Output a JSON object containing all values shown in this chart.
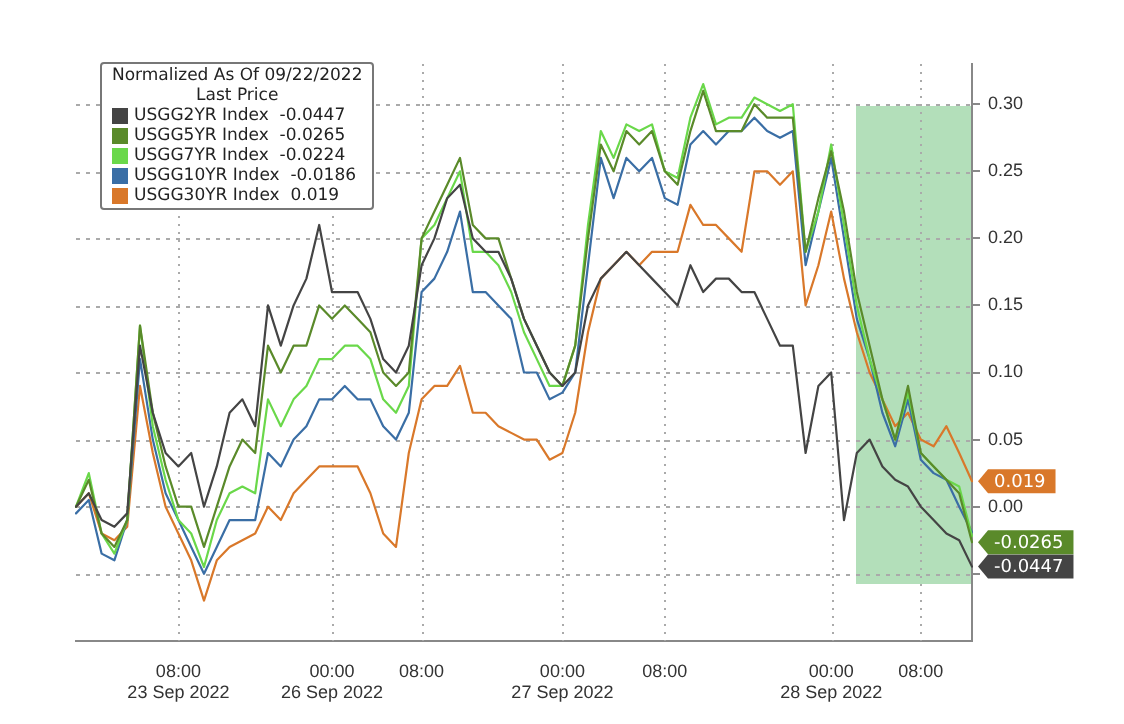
{
  "chart_data": {
    "type": "line",
    "legend_title": "Normalized As Of 09/22/2022\nLast Price",
    "legend": "top left",
    "grid": true,
    "marker": "none",
    "categories": [
      null,
      null,
      null,
      null,
      null,
      null,
      null,
      null,
      "08:00\n23 Sep 2022",
      null,
      null,
      null,
      null,
      null,
      null,
      null,
      null,
      null,
      null,
      null,
      "00:00\n26 Sep 2022",
      null,
      null,
      null,
      null,
      null,
      null,
      "08:00",
      null,
      null,
      null,
      null,
      null,
      null,
      null,
      null,
      null,
      null,
      "00:00\n27 Sep 2022",
      null,
      null,
      null,
      null,
      null,
      null,
      null,
      "08:00",
      null,
      null,
      null,
      null,
      null,
      null,
      null,
      null,
      null,
      null,
      null,
      null,
      "00:00\n28 Sep 2022",
      null,
      null,
      null,
      null,
      null,
      null,
      "08:00",
      null,
      null,
      null,
      null
    ],
    "ylim": [
      -0.1,
      0.33
    ],
    "yticks": [
      {
        "value": 0.3,
        "label": "0.30"
      },
      {
        "value": 0.25,
        "label": "0.25"
      },
      {
        "value": 0.2,
        "label": "0.20"
      },
      {
        "value": 0.15,
        "label": "0.15"
      },
      {
        "value": 0.1,
        "label": "0.10"
      },
      {
        "value": 0.05,
        "label": "0.05"
      },
      {
        "value": 0,
        "label": "0.00"
      },
      {
        "value": -0.05,
        "label": null
      }
    ],
    "series": [
      {
        "name": "USGG2YR Index  -0.0447",
        "color": "#444444",
        "values": [
          0.0,
          0.01,
          -0.01,
          -0.015,
          -0.005,
          0.12,
          0.07,
          0.04,
          0.03,
          0.04,
          0.0,
          0.03,
          0.07,
          0.08,
          0.06,
          0.15,
          0.12,
          0.15,
          0.17,
          0.21,
          0.16,
          0.16,
          0.16,
          0.14,
          0.11,
          0.1,
          0.12,
          0.18,
          0.2,
          0.23,
          0.24,
          0.2,
          0.19,
          0.19,
          0.17,
          0.14,
          0.12,
          0.1,
          0.09,
          0.1,
          0.15,
          0.17,
          0.18,
          0.19,
          0.18,
          0.17,
          0.16,
          0.15,
          0.18,
          0.16,
          0.17,
          0.17,
          0.16,
          0.16,
          0.14,
          0.12,
          0.12,
          0.04,
          0.09,
          0.1,
          -0.01,
          0.04,
          0.05,
          0.03,
          0.02,
          0.015,
          0.0,
          -0.01,
          -0.02,
          -0.025,
          -0.0447
        ],
        "value_labels": [
          null,
          null,
          null,
          null,
          null,
          null,
          null,
          null,
          null,
          null,
          null,
          null,
          null,
          null,
          null,
          null,
          null,
          null,
          null,
          null,
          null,
          null,
          null,
          null,
          null,
          null,
          null,
          null,
          null,
          null,
          null,
          null,
          null,
          null,
          null,
          null,
          null,
          null,
          null,
          null,
          null,
          null,
          null,
          null,
          null,
          null,
          null,
          null,
          null,
          null,
          null,
          null,
          null,
          null,
          null,
          null,
          null,
          null,
          null,
          null,
          null,
          null,
          null,
          null,
          null,
          null,
          null,
          null,
          null,
          null,
          "-0.0447"
        ]
      },
      {
        "name": "USGG5YR Index  -0.0265",
        "color": "#5a8a2a",
        "values": [
          0.0,
          0.02,
          -0.02,
          -0.03,
          -0.01,
          0.135,
          0.07,
          0.03,
          0.0,
          0.0,
          -0.03,
          0.0,
          0.03,
          0.05,
          0.04,
          0.12,
          0.1,
          0.12,
          0.12,
          0.15,
          0.14,
          0.15,
          0.14,
          0.13,
          0.1,
          0.09,
          0.1,
          0.2,
          0.22,
          0.24,
          0.26,
          0.21,
          0.2,
          0.2,
          0.17,
          0.14,
          0.12,
          0.1,
          0.09,
          0.12,
          0.2,
          0.27,
          0.25,
          0.28,
          0.27,
          0.28,
          0.25,
          0.24,
          0.28,
          0.31,
          0.28,
          0.28,
          0.28,
          0.3,
          0.29,
          0.29,
          0.29,
          0.19,
          0.23,
          0.265,
          0.22,
          0.16,
          0.12,
          0.08,
          0.05,
          0.09,
          0.04,
          0.03,
          0.02,
          0.01,
          -0.0265
        ],
        "value_labels": [
          null,
          null,
          null,
          null,
          null,
          null,
          null,
          null,
          null,
          null,
          null,
          null,
          null,
          null,
          null,
          null,
          null,
          null,
          null,
          null,
          null,
          null,
          null,
          null,
          null,
          null,
          null,
          null,
          null,
          null,
          null,
          null,
          null,
          null,
          null,
          null,
          null,
          null,
          null,
          null,
          null,
          null,
          null,
          null,
          null,
          null,
          null,
          null,
          null,
          null,
          null,
          null,
          null,
          null,
          null,
          null,
          null,
          null,
          null,
          null,
          null,
          null,
          null,
          null,
          null,
          null,
          null,
          null,
          null,
          null,
          "-0.0265"
        ]
      },
      {
        "name": "USGG7YR Index  -0.0224",
        "color": "#6ad84a",
        "values": [
          0.0,
          0.025,
          -0.02,
          -0.035,
          -0.01,
          0.135,
          0.06,
          0.02,
          -0.01,
          -0.02,
          -0.045,
          -0.01,
          0.01,
          0.015,
          0.01,
          0.08,
          0.06,
          0.08,
          0.09,
          0.11,
          0.11,
          0.12,
          0.12,
          0.11,
          0.08,
          0.07,
          0.09,
          0.2,
          0.21,
          0.23,
          0.25,
          0.19,
          0.19,
          0.18,
          0.16,
          0.13,
          0.11,
          0.09,
          0.09,
          0.12,
          0.21,
          0.28,
          0.26,
          0.285,
          0.28,
          0.285,
          0.25,
          0.245,
          0.29,
          0.315,
          0.285,
          0.29,
          0.29,
          0.305,
          0.3,
          0.295,
          0.3,
          0.19,
          0.22,
          0.27,
          0.21,
          0.15,
          0.11,
          0.08,
          0.05,
          0.085,
          0.04,
          0.03,
          0.02,
          0.015,
          -0.022
        ]
      },
      {
        "name": "USGG10YR Index  -0.0186",
        "color": "#3a6ea5",
        "values": [
          -0.005,
          0.005,
          -0.035,
          -0.04,
          -0.01,
          0.11,
          0.05,
          0.01,
          -0.01,
          -0.03,
          -0.05,
          -0.03,
          -0.01,
          -0.01,
          -0.01,
          0.04,
          0.03,
          0.05,
          0.06,
          0.08,
          0.08,
          0.09,
          0.08,
          0.08,
          0.06,
          0.05,
          0.07,
          0.16,
          0.17,
          0.19,
          0.22,
          0.16,
          0.16,
          0.15,
          0.14,
          0.1,
          0.1,
          0.08,
          0.085,
          0.1,
          0.18,
          0.26,
          0.23,
          0.26,
          0.25,
          0.26,
          0.23,
          0.225,
          0.27,
          0.28,
          0.27,
          0.28,
          0.28,
          0.29,
          0.28,
          0.275,
          0.28,
          0.18,
          0.22,
          0.26,
          0.2,
          0.14,
          0.11,
          0.07,
          0.045,
          0.08,
          0.035,
          0.025,
          0.02,
          0.0,
          -0.019
        ]
      },
      {
        "name": "USGG30YR Index  0.019",
        "color": "#d9782a",
        "values": [
          0.0,
          0.01,
          -0.02,
          -0.025,
          -0.015,
          0.09,
          0.04,
          0.0,
          -0.02,
          -0.04,
          -0.07,
          -0.04,
          -0.03,
          -0.025,
          -0.02,
          0.0,
          -0.01,
          0.01,
          0.02,
          0.03,
          0.03,
          0.03,
          0.03,
          0.01,
          -0.02,
          -0.03,
          0.04,
          0.08,
          0.09,
          0.09,
          0.105,
          0.07,
          0.07,
          0.06,
          0.055,
          0.05,
          0.05,
          0.035,
          0.04,
          0.07,
          0.13,
          0.17,
          0.18,
          0.19,
          0.18,
          0.19,
          0.19,
          0.19,
          0.225,
          0.21,
          0.21,
          0.2,
          0.19,
          0.25,
          0.25,
          0.24,
          0.25,
          0.15,
          0.18,
          0.22,
          0.17,
          0.13,
          0.1,
          0.08,
          0.06,
          0.07,
          0.05,
          0.045,
          0.06,
          0.04,
          0.019
        ],
        "value_labels": [
          null,
          null,
          null,
          null,
          null,
          null,
          null,
          null,
          null,
          null,
          null,
          null,
          null,
          null,
          null,
          null,
          null,
          null,
          null,
          null,
          null,
          null,
          null,
          null,
          null,
          null,
          null,
          null,
          null,
          null,
          null,
          null,
          null,
          null,
          null,
          null,
          null,
          null,
          null,
          null,
          null,
          null,
          null,
          null,
          null,
          null,
          null,
          null,
          null,
          null,
          null,
          null,
          null,
          null,
          null,
          null,
          null,
          null,
          null,
          null,
          null,
          null,
          null,
          null,
          null,
          null,
          null,
          null,
          null,
          null,
          "0.019"
        ]
      }
    ]
  }
}
